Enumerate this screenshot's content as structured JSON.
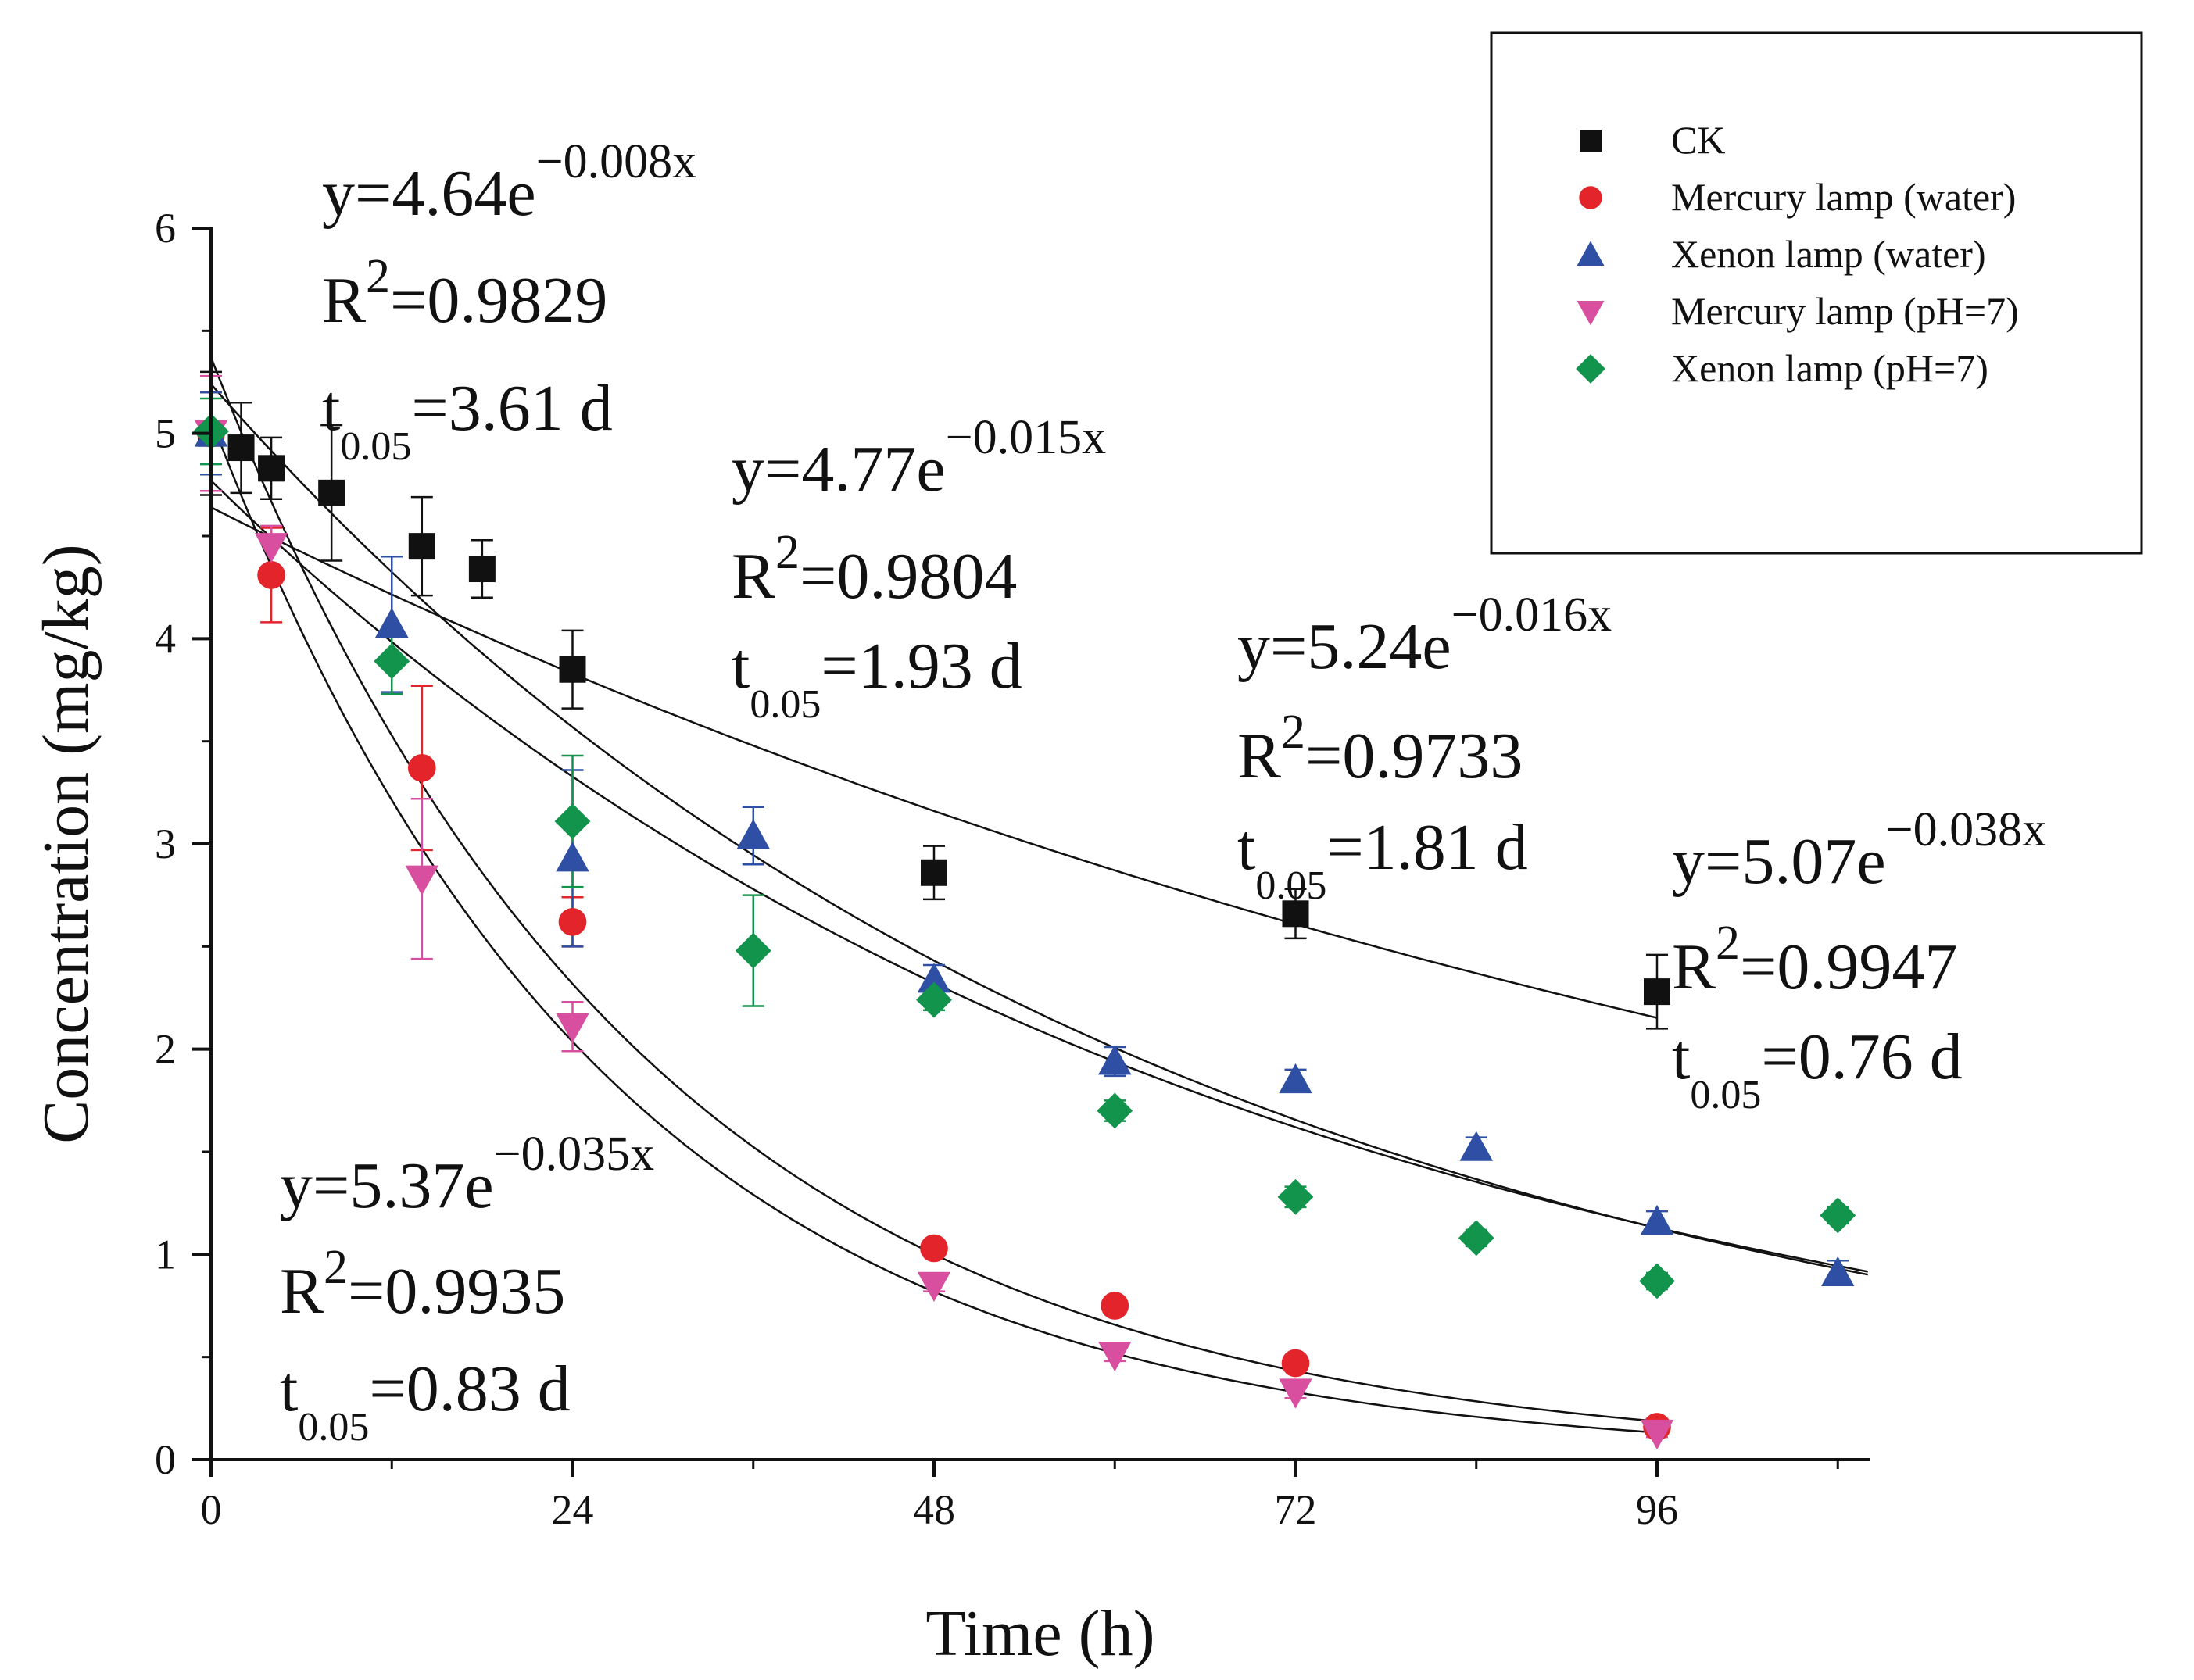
{
  "chart_data": {
    "type": "scatter",
    "title": "",
    "xlabel": "Time (h)",
    "ylabel": "Concentration (mg/kg)",
    "xlim": [
      0,
      105
    ],
    "ylim": [
      0,
      6
    ],
    "xticks": [
      0,
      24,
      48,
      72,
      96
    ],
    "yticks": [
      0,
      1,
      2,
      3,
      4,
      5,
      6
    ],
    "xtick_labels": [
      "0",
      "24",
      "48",
      "72",
      "96"
    ],
    "ytick_labels": [
      "0",
      "1",
      "2",
      "3",
      "4",
      "5",
      "6"
    ],
    "grid": false,
    "legend_position": "top-right",
    "series": [
      {
        "name": "CK",
        "marker": "square",
        "color": "#111111",
        "x": [
          0,
          2,
          4,
          8,
          14,
          18,
          24,
          48,
          72,
          96
        ],
        "y": [
          5.0,
          4.93,
          4.83,
          4.71,
          4.45,
          4.34,
          3.85,
          2.86,
          2.66,
          2.28
        ],
        "err": [
          0.3,
          0.22,
          0.15,
          0.33,
          0.24,
          0.14,
          0.19,
          0.13,
          0.12,
          0.18
        ]
      },
      {
        "name": "Mercury lamp (water)",
        "marker": "circle",
        "color": "#e3242b",
        "x": [
          0,
          4,
          14,
          24,
          48,
          60,
          72,
          96
        ],
        "y": [
          5.0,
          4.31,
          3.37,
          2.62,
          1.03,
          0.75,
          0.47,
          0.16
        ],
        "err": [
          0.2,
          0.23,
          0.4,
          0.12,
          0.03,
          0.03,
          0.03,
          0.02
        ]
      },
      {
        "name": "Xenon lamp (water)",
        "marker": "triangle-up",
        "color": "#2e4fa3",
        "x": [
          0,
          12,
          24,
          36,
          48,
          60,
          72,
          84,
          96,
          108
        ],
        "y": [
          5.0,
          4.07,
          2.93,
          3.04,
          2.34,
          1.94,
          1.85,
          1.52,
          1.16,
          0.91
        ],
        "err": [
          0.2,
          0.33,
          0.43,
          0.14,
          0.07,
          0.07,
          0.05,
          0.05,
          0.05,
          0.06
        ]
      },
      {
        "name": "Mercury lamp (pH=7)",
        "marker": "triangle-down",
        "color": "#d94fa0",
        "x": [
          0,
          4,
          14,
          24,
          48,
          60,
          72,
          96
        ],
        "y": [
          5.0,
          4.45,
          2.83,
          2.11,
          0.85,
          0.51,
          0.33,
          0.13
        ],
        "err": [
          0.28,
          0.1,
          0.39,
          0.12,
          0.03,
          0.03,
          0.03,
          0.02
        ]
      },
      {
        "name": "Xenon lamp (pH=7)",
        "marker": "diamond",
        "color": "#13944d",
        "x": [
          0,
          12,
          24,
          36,
          48,
          60,
          72,
          84,
          96,
          108
        ],
        "y": [
          5.01,
          3.89,
          3.11,
          2.48,
          2.24,
          1.7,
          1.28,
          1.08,
          0.87,
          1.19
        ],
        "err": [
          0.16,
          0.16,
          0.32,
          0.27,
          0.05,
          0.05,
          0.05,
          0.04,
          0.04,
          0.04
        ]
      }
    ],
    "fits": [
      {
        "a": 4.64,
        "k": 0.008,
        "x_end": 96
      },
      {
        "a": 4.77,
        "k": 0.015,
        "x_end": 110
      },
      {
        "a": 5.24,
        "k": 0.016,
        "x_end": 110
      },
      {
        "a": 5.07,
        "k": 0.038,
        "x_end": 96
      },
      {
        "a": 5.37,
        "k": 0.035,
        "x_end": 96
      }
    ],
    "annotations": [
      {
        "prefix": "y=4.64e",
        "exp": "−0.008x",
        "r_prefix": "R",
        "r_sup": "2",
        "r_value": "=0.9829",
        "t_prefix": "t",
        "t_sub": "0.05",
        "t_value": "=3.61 d"
      },
      {
        "prefix": "y=4.77e",
        "exp": "−0.015x",
        "r_prefix": "R",
        "r_sup": "2",
        "r_value": "=0.9804",
        "t_prefix": "t",
        "t_sub": "0.05",
        "t_value": "=1.93 d"
      },
      {
        "prefix": "y=5.24e",
        "exp": "−0.016x",
        "r_prefix": "R",
        "r_sup": "2",
        "r_value": "=0.9733",
        "t_prefix": "t",
        "t_sub": "0.05",
        "t_value": "=1.81 d"
      },
      {
        "prefix": "y=5.07e",
        "exp": "−0.038x",
        "r_prefix": "R",
        "r_sup": "2",
        "r_value": "=0.9947",
        "t_prefix": "t",
        "t_sub": "0.05",
        "t_value": "=0.76 d"
      },
      {
        "prefix": "y=5.37e",
        "exp": "−0.035x",
        "r_prefix": "R",
        "r_sup": "2",
        "r_value": "=0.9935",
        "t_prefix": "t",
        "t_sub": "0.05",
        "t_value": "=0.83 d"
      }
    ]
  }
}
